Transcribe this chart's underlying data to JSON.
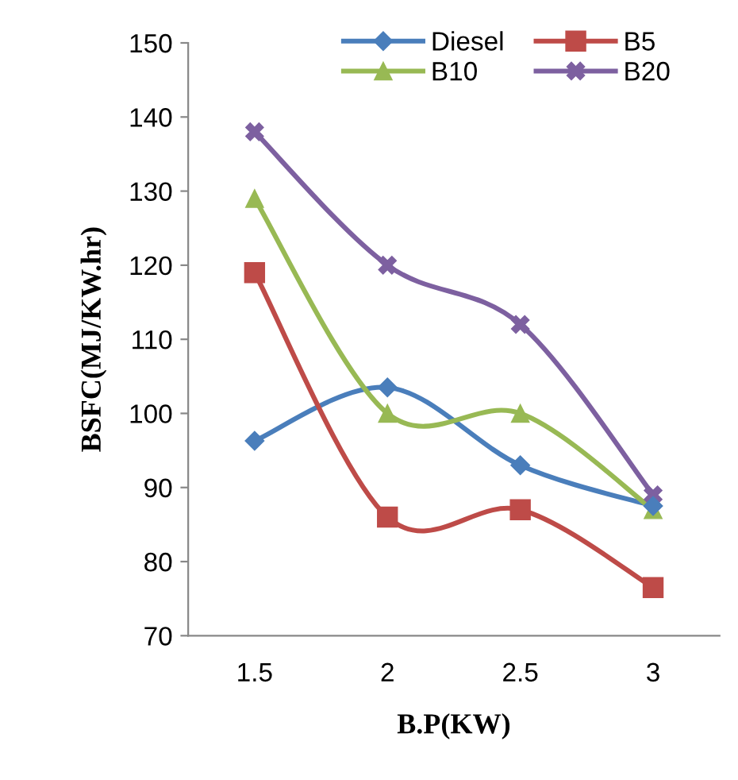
{
  "chart_data": {
    "type": "line",
    "xlabel": "B.P(KW)",
    "ylabel": "BSFC(MJ/KW.hr)",
    "categories": [
      "1.5",
      "2",
      "2.5",
      "3"
    ],
    "series": [
      {
        "name": "Diesel",
        "color": "#4a7ebb",
        "marker": "diamond",
        "values": [
          96.3,
          103.5,
          93,
          87.5
        ]
      },
      {
        "name": "B5",
        "color": "#be4b48",
        "marker": "square",
        "values": [
          119,
          86,
          87,
          76.5
        ]
      },
      {
        "name": "B10",
        "color": "#98b954",
        "marker": "triangle",
        "values": [
          129,
          100,
          100,
          87
        ]
      },
      {
        "name": "B20",
        "color": "#7d60a0",
        "marker": "cross",
        "values": [
          138,
          120,
          112,
          89
        ]
      }
    ],
    "ylim": [
      70,
      150
    ],
    "yticks": [
      70,
      80,
      90,
      100,
      110,
      120,
      130,
      140,
      150
    ],
    "grid": false,
    "legend": "top",
    "line_style": "solid"
  }
}
